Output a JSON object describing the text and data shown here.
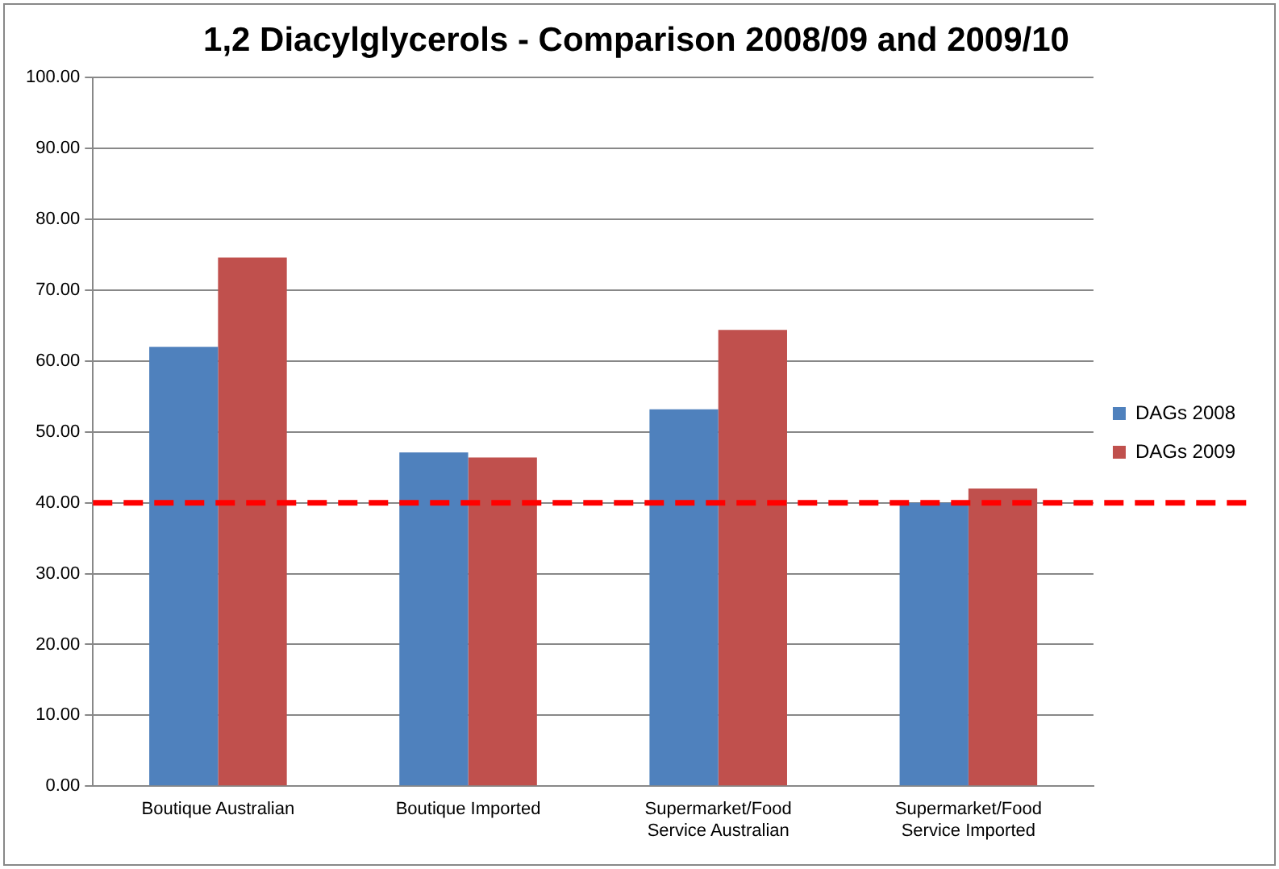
{
  "chart_data": {
    "type": "bar",
    "title": "1,2 Diacylglycerols - Comparison 2008/09 and 2009/10",
    "categories": [
      "Boutique Australian",
      "Boutique Imported",
      "Supermarket/Food Service Australian",
      "Supermarket/Food Service Imported"
    ],
    "series": [
      {
        "name": "DAGs 2008",
        "color": "#4f81bd",
        "values": [
          62.0,
          47.1,
          53.2,
          40.0
        ]
      },
      {
        "name": "DAGs 2009",
        "color": "#c0504d",
        "values": [
          74.6,
          46.4,
          64.4,
          42.0
        ]
      }
    ],
    "ylim": [
      0,
      100
    ],
    "yticks": [
      {
        "value": 0,
        "label": "0.00"
      },
      {
        "value": 10,
        "label": "10.00"
      },
      {
        "value": 20,
        "label": "20.00"
      },
      {
        "value": 30,
        "label": "30.00"
      },
      {
        "value": 40,
        "label": "40.00"
      },
      {
        "value": 50,
        "label": "50.00"
      },
      {
        "value": 60,
        "label": "60.00"
      },
      {
        "value": 70,
        "label": "70.00"
      },
      {
        "value": 80,
        "label": "80.00"
      },
      {
        "value": 90,
        "label": "90.00"
      },
      {
        "value": 100,
        "label": "100.00"
      }
    ],
    "ref_lines": [
      {
        "axis": "y",
        "value": 40,
        "color": "#ff0000",
        "line_style": "dashed"
      }
    ],
    "grid": "y",
    "legend": "right"
  }
}
